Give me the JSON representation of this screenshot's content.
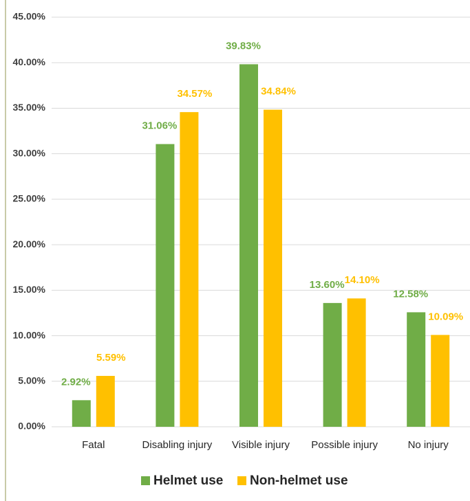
{
  "chart_data": {
    "type": "bar",
    "categories": [
      "Fatal",
      "Disabling injury",
      "Visible injury",
      "Possible injury",
      "No injury"
    ],
    "series": [
      {
        "name": "Helmet use",
        "color": "#70ad47",
        "values": [
          2.92,
          31.06,
          39.83,
          13.6,
          12.58
        ],
        "value_labels": [
          "2.92%",
          "31.06%",
          "39.83%",
          "13.60%",
          "12.58%"
        ]
      },
      {
        "name": "Non-helmet use",
        "color": "#ffc000",
        "values": [
          5.59,
          34.57,
          34.84,
          14.1,
          10.09
        ],
        "value_labels": [
          "5.59%",
          "34.57%",
          "34.84%",
          "14.10%",
          "10.09%"
        ]
      }
    ],
    "ylim": [
      0,
      45
    ],
    "yticks": [
      {
        "value": 0,
        "label": "0.00%"
      },
      {
        "value": 5,
        "label": "5.00%"
      },
      {
        "value": 10,
        "label": "10.00%"
      },
      {
        "value": 15,
        "label": "15.00%"
      },
      {
        "value": 20,
        "label": "20.00%"
      },
      {
        "value": 25,
        "label": "25.00%"
      },
      {
        "value": 30,
        "label": "30.00%"
      },
      {
        "value": 35,
        "label": "35.00%"
      },
      {
        "value": 40,
        "label": "40.00%"
      },
      {
        "value": 45,
        "label": "45.00%"
      }
    ],
    "grid": true,
    "legend": "bottom"
  }
}
